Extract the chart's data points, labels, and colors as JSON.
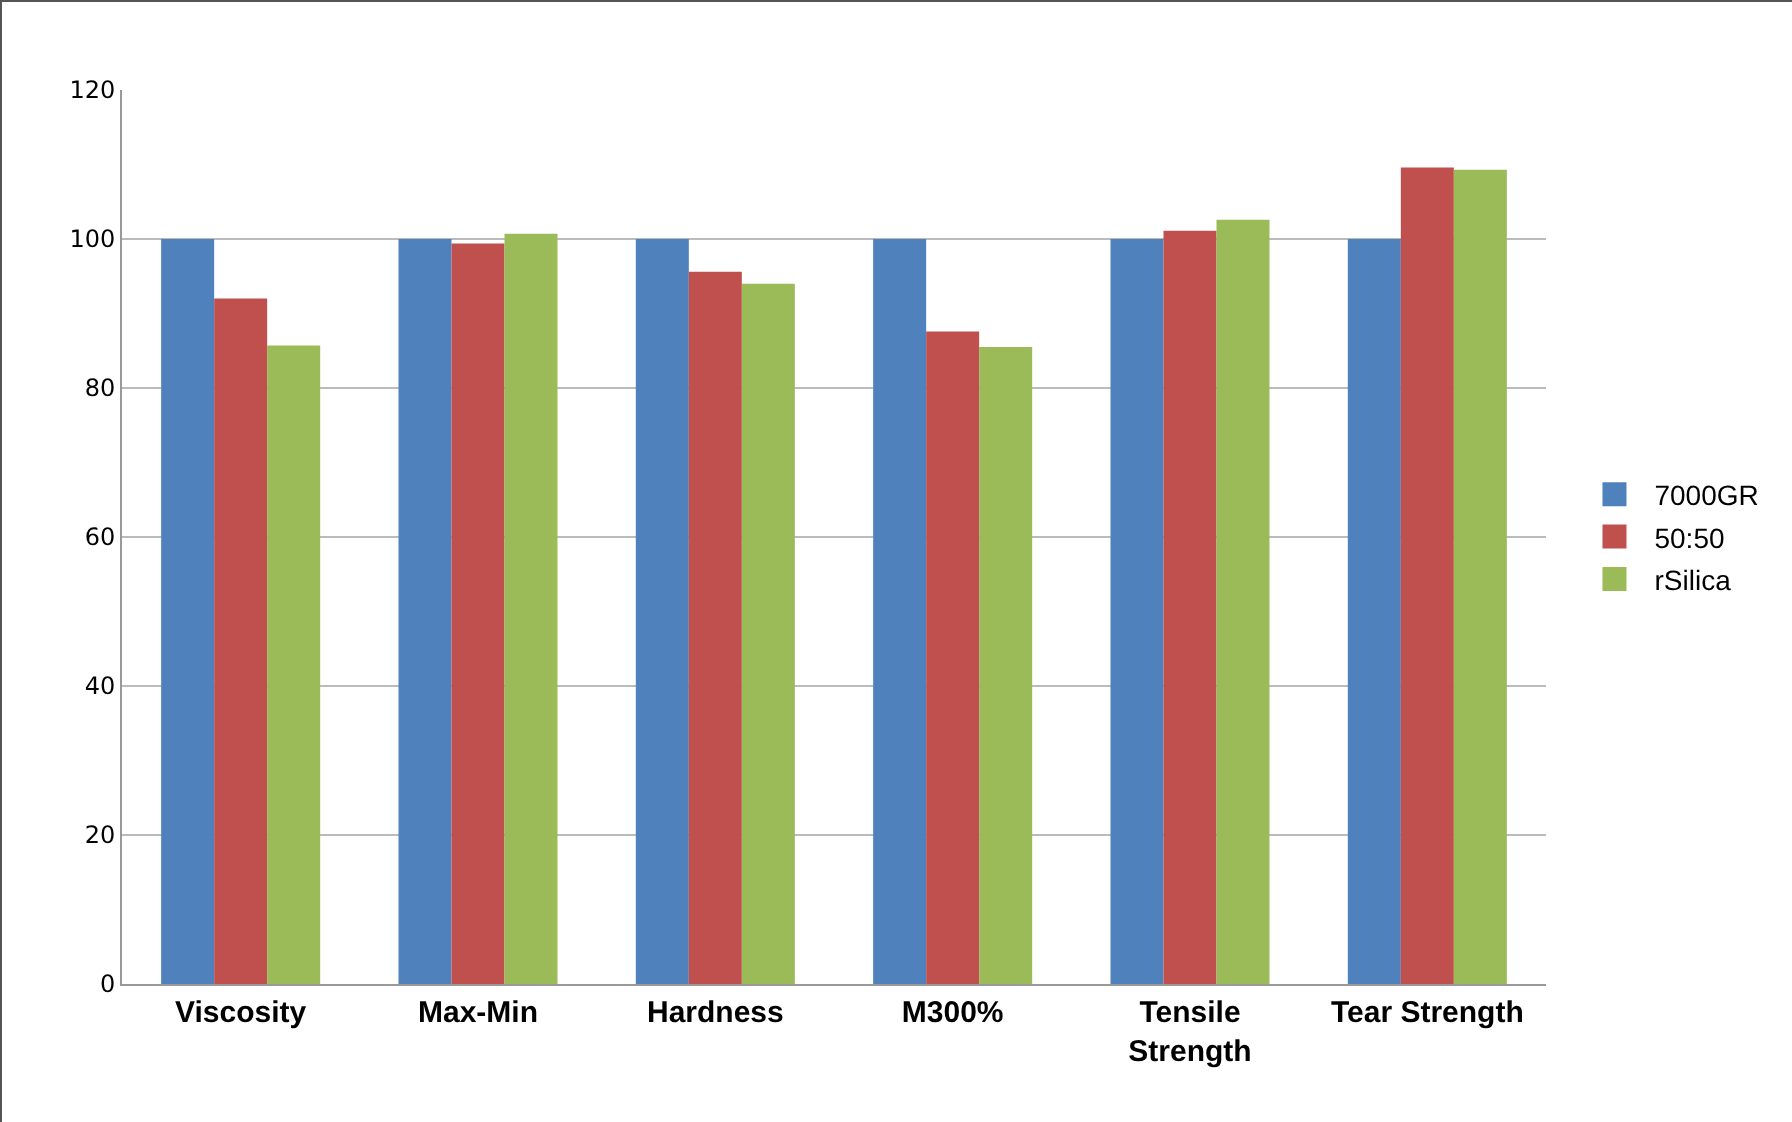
{
  "chart_data": {
    "type": "bar",
    "categories": [
      "Viscosity",
      "Max-Min",
      "Hardness",
      "M300%",
      "Tensile\nStrength",
      "Tear Strength"
    ],
    "series": [
      {
        "name": "7000GR",
        "color": "#4f81bd",
        "values": [
          100,
          100,
          100,
          100,
          100,
          100
        ]
      },
      {
        "name": "50:50",
        "color": "#c0504d",
        "values": [
          92,
          99.4,
          95.6,
          87.6,
          101.1,
          109.6
        ]
      },
      {
        "name": "rSilica",
        "color": "#9bbb59",
        "values": [
          85.7,
          100.7,
          94,
          85.5,
          102.6,
          109.3
        ]
      }
    ],
    "ylim": [
      0,
      120
    ],
    "yticks": [
      0,
      20,
      40,
      60,
      80,
      100,
      120
    ],
    "grid": "y",
    "legend": "right"
  }
}
